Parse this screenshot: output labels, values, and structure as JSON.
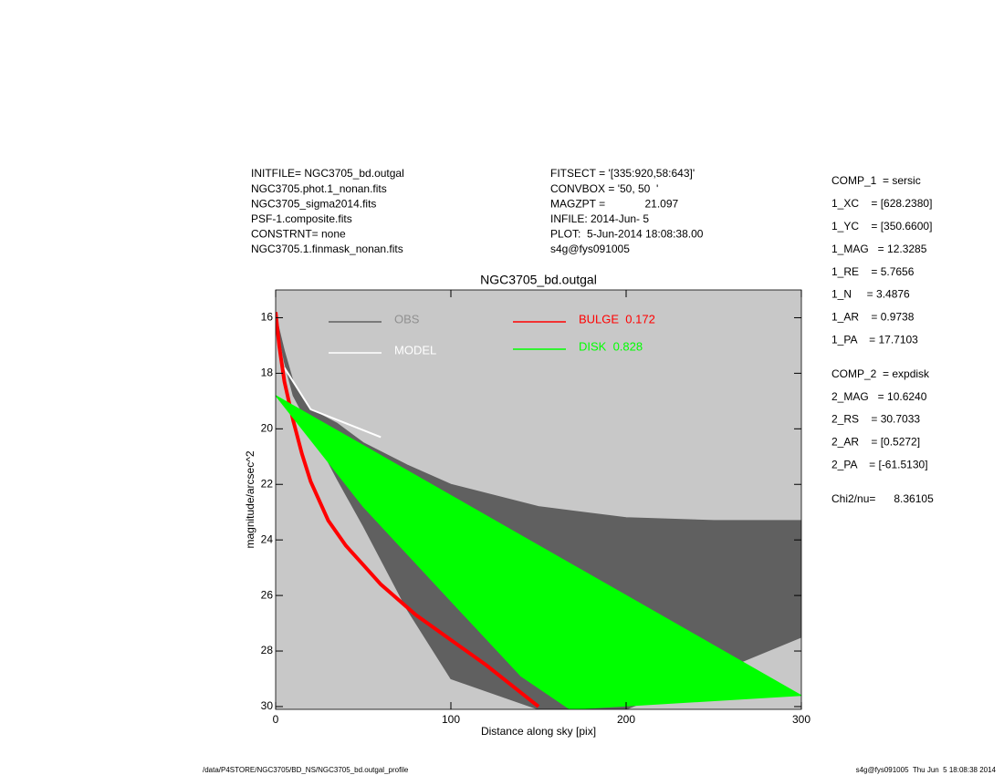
{
  "header": {
    "left": [
      "INITFILE= NGC3705_bd.outgal",
      "NGC3705.phot.1_nonan.fits",
      "NGC3705_sigma2014.fits",
      "PSF-1.composite.fits",
      "CONSTRNT= none",
      "NGC3705.1.finmask_nonan.fits"
    ],
    "middle": [
      "FITSECT = '[335:920,58:643]'",
      "CONVBOX = '50, 50  '",
      "MAGZPT =             21.097",
      "INFILE: 2014-Jun- 5",
      "PLOT:  5-Jun-2014 18:08:38.00",
      "s4g@fys091005"
    ],
    "params": [
      [
        "COMP_1  = sersic",
        "1_XC    = [628.2380]",
        "1_YC    = [350.6600]",
        "1_MAG   = 12.3285",
        "1_RE    = 5.7656",
        "1_N     = 3.4876",
        "1_AR    = 0.9738",
        "1_PA    = 17.7103"
      ],
      [
        "COMP_2  = expdisk",
        "2_MAG   = 10.6240",
        "2_RS    = 30.7033",
        "2_AR    = [0.5272]",
        "2_PA    = [-61.5130]"
      ],
      [
        "Chi2/nu=      8.36105"
      ]
    ]
  },
  "footer": {
    "left": "/data/P4STORE/NGC3705/BD_NS/NGC3705_bd.outgal_profile",
    "right": "s4g@fys091005  Thu Jun  5 18:08:38 2014"
  },
  "chart_data": {
    "type": "line",
    "title": "NGC3705_bd.outgal",
    "x_label": "Distance along sky [pix]",
    "y_label": "magnitude/arcsec^2",
    "xlim": [
      0,
      300
    ],
    "ylim": [
      30.1,
      15
    ],
    "xticks": [
      0,
      100,
      200,
      300
    ],
    "yticks": [
      16,
      18,
      20,
      22,
      24,
      26,
      28,
      30
    ],
    "background": "#c8c8c8",
    "series": [
      {
        "name": "OBS",
        "color": "#606060",
        "x": [
          0,
          5,
          10,
          20,
          35,
          50,
          75,
          100,
          150,
          200,
          250,
          300
        ],
        "values": [
          15.9,
          17.2,
          18.3,
          19.3,
          19.8,
          20.5,
          21.3,
          22,
          22.8,
          23.2,
          23.3,
          23.3
        ],
        "values_low": [
          16,
          17.6,
          18.8,
          20,
          21.8,
          23.5,
          26.5,
          29,
          30.1,
          30.1,
          28.8,
          27.5
        ]
      },
      {
        "name": "MODEL",
        "color": "#ffffff",
        "x": [
          5,
          20,
          40,
          60
        ],
        "values": [
          17.8,
          19.3,
          19.8,
          20.3
        ]
      },
      {
        "name": "BULGE  0.172",
        "color": "#ff0000",
        "x": [
          0,
          2,
          5,
          10,
          15,
          20,
          30,
          40,
          50,
          60,
          80,
          100,
          120,
          150
        ],
        "values": [
          15.8,
          17,
          18.3,
          19.7,
          20.9,
          21.9,
          23.3,
          24.2,
          24.9,
          25.6,
          26.7,
          27.6,
          28.5,
          30
        ]
      },
      {
        "name": "DISK  0.828",
        "color": "#00ff00",
        "x": [
          0,
          50,
          100,
          150,
          200,
          250,
          300
        ],
        "values": [
          18.8,
          20.6,
          22.4,
          24.2,
          26,
          27.8,
          29.6
        ],
        "x_low": [
          0,
          50,
          100,
          140,
          168
        ],
        "values_low": [
          18.8,
          22.8,
          26.2,
          28.9,
          30.1
        ]
      }
    ]
  }
}
